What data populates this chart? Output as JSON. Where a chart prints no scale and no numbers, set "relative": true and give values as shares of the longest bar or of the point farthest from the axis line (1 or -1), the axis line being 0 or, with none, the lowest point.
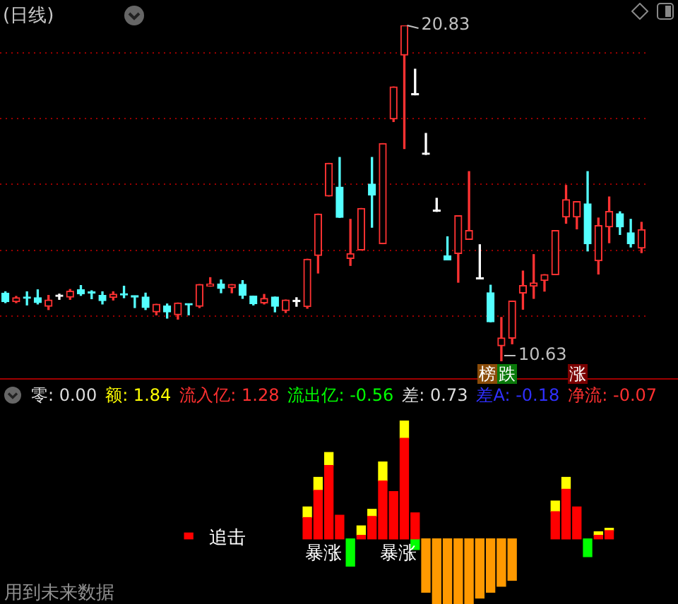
{
  "chart_data": [
    {
      "type": "candlestick",
      "title": "(日线)",
      "categories": [
        null,
        null,
        null,
        null,
        null,
        null,
        null,
        null,
        null,
        null,
        null,
        null,
        null,
        null,
        null,
        null,
        null,
        null,
        null,
        null,
        null,
        null,
        null,
        null,
        null,
        null,
        null,
        null,
        null,
        null,
        null,
        null,
        null,
        null,
        null,
        null,
        null,
        null,
        null,
        null,
        null,
        null,
        null,
        null,
        null,
        null,
        null,
        null,
        null,
        null,
        null,
        null,
        null,
        null,
        null,
        null,
        null,
        null,
        null,
        null
      ],
      "ohlc": [
        [
          12.7,
          12.74,
          12.41,
          12.44
        ],
        [
          12.44,
          12.6,
          12.41,
          12.56
        ],
        [
          12.57,
          12.74,
          12.34,
          12.54
        ],
        [
          12.56,
          12.8,
          12.37,
          12.41
        ],
        [
          12.3,
          12.63,
          12.2,
          12.49
        ],
        [
          12.6,
          12.67,
          12.51,
          12.6
        ],
        [
          12.58,
          12.81,
          12.51,
          12.76
        ],
        [
          12.8,
          12.93,
          12.63,
          12.68
        ],
        [
          12.71,
          12.77,
          12.53,
          12.7
        ],
        [
          12.63,
          12.74,
          12.37,
          12.47
        ],
        [
          12.57,
          12.74,
          12.49,
          12.67
        ],
        [
          12.67,
          12.91,
          12.56,
          12.64
        ],
        [
          12.6,
          12.61,
          12.26,
          12.58
        ],
        [
          12.58,
          12.7,
          12.2,
          12.26
        ],
        [
          12.13,
          12.36,
          12.04,
          12.36
        ],
        [
          12.31,
          12.37,
          11.94,
          12.13
        ],
        [
          12.04,
          12.4,
          11.91,
          12.4
        ],
        [
          12.37,
          12.37,
          12.04,
          12.34
        ],
        [
          12.3,
          12.96,
          12.26,
          12.96
        ],
        [
          12.91,
          13.17,
          12.91,
          12.98
        ],
        [
          12.98,
          13.1,
          12.71,
          12.84
        ],
        [
          12.86,
          12.96,
          12.71,
          12.96
        ],
        [
          12.97,
          13.08,
          12.54,
          12.63
        ],
        [
          12.61,
          12.61,
          12.34,
          12.38
        ],
        [
          12.4,
          12.66,
          12.37,
          12.54
        ],
        [
          12.58,
          12.58,
          12.13,
          12.3
        ],
        [
          12.17,
          12.49,
          12.11,
          12.49
        ],
        [
          12.44,
          12.56,
          12.3,
          12.44
        ],
        [
          12.29,
          13.73,
          12.24,
          13.73
        ],
        [
          13.84,
          15.1,
          13.31,
          15.1
        ],
        [
          15.65,
          16.64,
          15.65,
          16.64
        ],
        [
          15.92,
          16.82,
          15.0,
          15.0
        ],
        [
          13.75,
          14.94,
          13.54,
          13.9
        ],
        [
          14.01,
          15.27,
          14.01,
          15.27
        ],
        [
          16.01,
          16.82,
          14.7,
          15.68
        ],
        [
          14.2,
          17.24,
          14.2,
          17.24
        ],
        [
          17.99,
          18.96,
          17.91,
          18.96
        ],
        [
          19.93,
          20.83,
          17.09,
          20.83
        ],
        [
          18.72,
          19.5,
          18.72,
          18.72
        ],
        [
          16.91,
          17.55,
          16.91,
          16.91
        ],
        [
          15.18,
          15.58,
          15.18,
          15.18
        ],
        [
          13.83,
          14.41,
          13.71,
          13.71
        ],
        [
          13.9,
          15.05,
          13.03,
          15.05
        ],
        [
          14.33,
          16.39,
          14.33,
          14.6
        ],
        [
          13.13,
          14.17,
          13.13,
          13.13
        ],
        [
          12.71,
          12.94,
          11.83,
          11.83
        ],
        [
          11.1,
          11.96,
          10.63,
          11.34
        ],
        [
          11.33,
          12.46,
          11.16,
          12.46
        ],
        [
          12.7,
          13.37,
          12.21,
          12.93
        ],
        [
          12.91,
          13.87,
          12.54,
          13.01
        ],
        [
          13.08,
          13.26,
          12.76,
          13.26
        ],
        [
          13.26,
          14.6,
          13.26,
          14.6
        ],
        [
          15.01,
          15.97,
          14.82,
          15.54
        ],
        [
          15.01,
          15.48,
          14.65,
          15.48
        ],
        [
          15.41,
          16.39,
          13.98,
          14.2
        ],
        [
          13.68,
          14.98,
          13.28,
          14.75
        ],
        [
          14.71,
          15.62,
          14.23,
          15.18
        ],
        [
          15.11,
          15.17,
          14.48,
          14.71
        ],
        [
          14.53,
          14.94,
          14.1,
          14.2
        ],
        [
          14.07,
          14.85,
          13.93,
          14.63
        ]
      ],
      "colors": [
        "#54ffff",
        "#ff3232",
        "#54ffff",
        "#54ffff",
        "#ff3232",
        "#ffffff",
        "#ff3232",
        "#54ffff",
        "#54ffff",
        "#54ffff",
        "#ff3232",
        "#54ffff",
        "#54ffff",
        "#54ffff",
        "#ff3232",
        "#54ffff",
        "#ff3232",
        "#54ffff",
        "#ff3232",
        "#ff3232",
        "#54ffff",
        "#ff3232",
        "#54ffff",
        "#54ffff",
        "#ff3232",
        "#54ffff",
        "#ff3232",
        "#ffffff",
        "#ff3232",
        "#ff3232",
        "#ff3232",
        "#54ffff",
        "#ff3232",
        "#ff3232",
        "#54ffff",
        "#ff3232",
        "#ff3232",
        "#ff3232",
        "#ffffff",
        "#ffffff",
        "#ffffff",
        "#54ffff",
        "#ff3232",
        "#ff3232",
        "#ffffff",
        "#54ffff",
        "#ff3232",
        "#ff3232",
        "#ff3232",
        "#ff3232",
        "#ff3232",
        "#ff3232",
        "#ff3232",
        "#ff3232",
        "#54ffff",
        "#ff3232",
        "#ff3232",
        "#54ffff",
        "#54ffff",
        "#ff3232"
      ],
      "yticks": [
        {
          "value": 12,
          "label": null
        },
        {
          "value": 14,
          "label": null
        },
        {
          "value": 16,
          "label": null
        },
        {
          "value": 18,
          "label": null
        },
        {
          "value": 20,
          "label": null
        }
      ],
      "grid": "y",
      "tick_labels": false,
      "annotations": [
        "20.83",
        "10.63",
        "榜",
        "跌",
        "涨"
      ]
    },
    {
      "type": "bar",
      "stacked": true,
      "relative": true,
      "categories": [
        null,
        null,
        null,
        null,
        null,
        null,
        null,
        null,
        null,
        null,
        null,
        null,
        null,
        null,
        null,
        null,
        null,
        null,
        null,
        null,
        null,
        null,
        null,
        null,
        null,
        null,
        null,
        null,
        null,
        null,
        null,
        null,
        null,
        null,
        null,
        null,
        null,
        null,
        null,
        null,
        null,
        null,
        null,
        null,
        null,
        null,
        null,
        null,
        null,
        null,
        null,
        null,
        null,
        null,
        null,
        null,
        null,
        null,
        null,
        null
      ],
      "series": [
        {
          "color": "#ff0000",
          "values": [
            null,
            null,
            null,
            null,
            null,
            null,
            null,
            null,
            null,
            null,
            null,
            null,
            null,
            null,
            null,
            null,
            null,
            0.05,
            null,
            null,
            null,
            null,
            null,
            null,
            null,
            null,
            null,
            null,
            0.18,
            0.41,
            0.62,
            0.2,
            null,
            0.03,
            0.19,
            0.49,
            0.4,
            0.85,
            0.22,
            null,
            null,
            null,
            null,
            null,
            null,
            null,
            null,
            null,
            null,
            null,
            null,
            0.23,
            0.42,
            0.27,
            null,
            0.03,
            0.07,
            null,
            null,
            null
          ]
        },
        {
          "color": "#ffff00",
          "values": [
            null,
            null,
            null,
            null,
            null,
            null,
            null,
            null,
            null,
            null,
            null,
            null,
            null,
            null,
            null,
            null,
            null,
            null,
            null,
            null,
            null,
            null,
            null,
            null,
            null,
            null,
            null,
            null,
            0.09,
            0.11,
            0.11,
            null,
            null,
            0.08,
            0.06,
            0.16,
            null,
            0.15,
            null,
            null,
            null,
            null,
            null,
            null,
            null,
            null,
            null,
            null,
            null,
            null,
            null,
            0.09,
            0.1,
            null,
            null,
            0.03,
            0.02,
            null,
            null,
            null
          ]
        },
        {
          "color": "#ff9900",
          "values": [
            null,
            null,
            null,
            null,
            null,
            null,
            null,
            null,
            null,
            null,
            null,
            null,
            null,
            null,
            null,
            null,
            null,
            null,
            null,
            null,
            null,
            null,
            null,
            null,
            null,
            null,
            null,
            null,
            null,
            null,
            null,
            null,
            null,
            null,
            null,
            null,
            null,
            null,
            null,
            -0.45,
            -0.55,
            -0.55,
            -0.55,
            -0.55,
            -0.5,
            -0.45,
            -0.4,
            -0.35,
            null,
            null,
            null,
            null,
            null,
            null,
            null,
            null,
            null,
            null,
            null,
            null
          ]
        },
        {
          "color": "#00ff00",
          "values": [
            null,
            null,
            null,
            null,
            null,
            null,
            null,
            null,
            null,
            null,
            null,
            null,
            null,
            null,
            null,
            null,
            null,
            null,
            null,
            null,
            null,
            null,
            null,
            null,
            null,
            null,
            null,
            null,
            null,
            null,
            null,
            null,
            -0.23,
            null,
            null,
            null,
            null,
            null,
            -0.09,
            null,
            null,
            null,
            null,
            null,
            null,
            null,
            null,
            null,
            null,
            null,
            null,
            null,
            null,
            null,
            -0.15,
            null,
            null,
            null,
            null,
            null
          ]
        }
      ],
      "annotations": [
        "零: 0.00",
        "额: 1.84",
        "流入亿: 1.28",
        "流出亿: -0.56",
        "差: 0.73",
        "差A: -0.18",
        "净流: -0.07",
        "追击",
        "暴涨",
        "暴涨",
        "用到未来数据"
      ]
    }
  ]
}
